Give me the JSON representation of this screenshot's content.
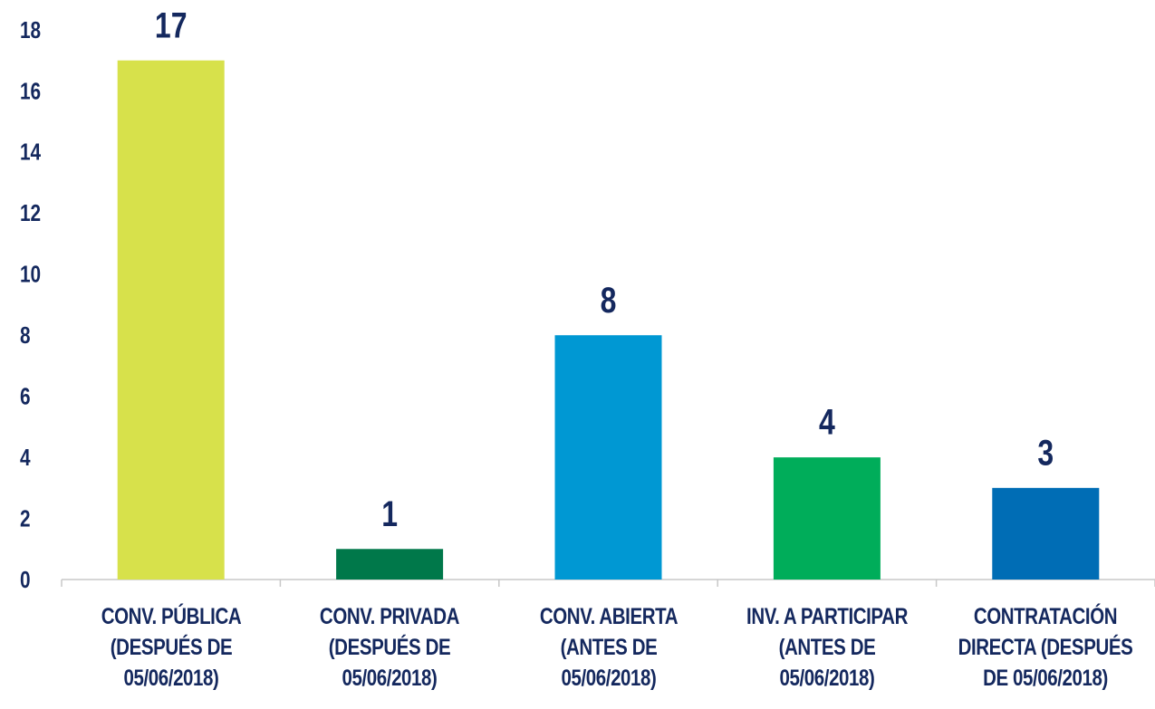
{
  "chart_data": {
    "type": "bar",
    "categories": [
      "CONV. PÚBLICA (DESPUÉS DE 05/06/2018)",
      "CONV. PRIVADA (DESPUÉS DE 05/06/2018)",
      "CONV. ABIERTA (ANTES DE 05/06/2018)",
      "INV. A PARTICIPAR (ANTES DE 05/06/2018)",
      "CONTRATACIÓN DIRECTA (DESPUÉS DE 05/06/2018)"
    ],
    "values": [
      17,
      1,
      8,
      4,
      3
    ],
    "colors": [
      "#d7e14b",
      "#00784a",
      "#0098d3",
      "#00ad5a",
      "#006db5"
    ],
    "ylim": [
      0,
      18
    ],
    "yticks": [
      0,
      2,
      4,
      6,
      8,
      10,
      12,
      14,
      16,
      18
    ],
    "grid": false
  }
}
